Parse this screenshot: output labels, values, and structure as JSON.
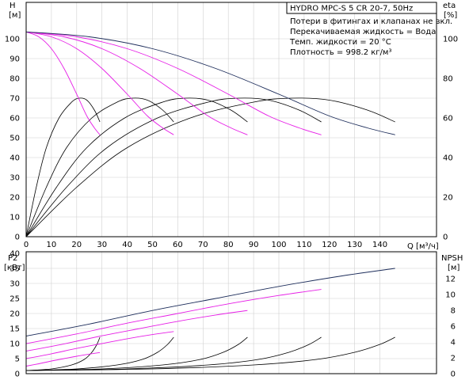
{
  "chart_data": [
    {
      "type": "line",
      "panel": "upper",
      "title": "HYDRO MPC-S 5 CR 20-7, 50Hz",
      "notes": [
        "Потери в фитингах и клапанах не вкл.",
        "Перекачиваемая жидкость = Вода",
        "Темп. жидкости = 20 °C",
        "Плотность = 998.2 кг/м³"
      ],
      "xlabel": "Q [м³/ч]",
      "x_ticks": [
        0,
        10,
        20,
        30,
        40,
        50,
        60,
        70,
        80,
        90,
        100,
        110,
        120,
        130,
        140
      ],
      "xlim": [
        0,
        150
      ],
      "ylabel_left": [
        "H",
        "[м]"
      ],
      "yleft_ticks": [
        0,
        10,
        20,
        30,
        40,
        50,
        60,
        70,
        80,
        90,
        100
      ],
      "ylim_left": [
        0,
        110
      ],
      "ylabel_right": [
        "eta",
        "[%]"
      ],
      "yright_ticks": [
        0,
        20,
        40,
        60,
        80,
        100
      ],
      "ylim_right": [
        0,
        110
      ],
      "grid": true,
      "colors": {
        "head_curves": "#e61ee6",
        "head_max": "#1c2c5a",
        "eff": "#000000"
      },
      "head_series": [
        {
          "pumps": 1,
          "color": "#e61ee6",
          "x": [
            0,
            5,
            10,
            15,
            20,
            24,
            27,
            29.2
          ],
          "y": [
            103.5,
            101,
            95,
            85,
            72,
            61,
            55,
            51.5
          ]
        },
        {
          "pumps": 2,
          "color": "#e61ee6",
          "x": [
            0,
            10,
            20,
            30,
            40,
            48,
            54,
            58.4
          ],
          "y": [
            103.5,
            101,
            95,
            85,
            72,
            61,
            55,
            51.5
          ]
        },
        {
          "pumps": 3,
          "color": "#e61ee6",
          "x": [
            0,
            15,
            30,
            45,
            60,
            72,
            81,
            87.6
          ],
          "y": [
            103.5,
            101,
            95,
            85,
            72,
            61,
            55,
            51.5
          ]
        },
        {
          "pumps": 4,
          "color": "#e61ee6",
          "x": [
            0,
            20,
            40,
            60,
            80,
            96,
            108,
            116.8
          ],
          "y": [
            103.5,
            101,
            95,
            85,
            72,
            61,
            55,
            51.5
          ]
        },
        {
          "pumps": 5,
          "color": "#1c2c5a",
          "x": [
            0,
            25,
            50,
            75,
            100,
            120,
            135,
            146
          ],
          "y": [
            103.5,
            101,
            95,
            85,
            72,
            61,
            55,
            51.5
          ]
        }
      ],
      "eff_series": [
        {
          "pumps": 1,
          "x": [
            0,
            4,
            8,
            13,
            18,
            21,
            24,
            27,
            29.2
          ],
          "y": [
            0,
            25,
            45,
            60,
            68,
            70,
            69,
            64,
            58
          ]
        },
        {
          "pumps": 2,
          "x": [
            0,
            8,
            16,
            26,
            36,
            42,
            48,
            54,
            58.4
          ],
          "y": [
            0,
            25,
            45,
            60,
            68,
            70,
            69,
            64,
            58
          ]
        },
        {
          "pumps": 3,
          "x": [
            0,
            12,
            24,
            39,
            54,
            63,
            72,
            81,
            87.6
          ],
          "y": [
            0,
            25,
            45,
            60,
            68,
            70,
            69,
            64,
            58
          ]
        },
        {
          "pumps": 4,
          "x": [
            0,
            16,
            32,
            52,
            72,
            84,
            96,
            108,
            116.8
          ],
          "y": [
            0,
            25,
            45,
            60,
            68,
            70,
            69,
            64,
            58
          ]
        },
        {
          "pumps": 5,
          "x": [
            0,
            20,
            40,
            65,
            90,
            105,
            120,
            135,
            146
          ],
          "y": [
            0,
            25,
            45,
            60,
            68,
            70,
            69,
            64,
            58
          ]
        }
      ]
    },
    {
      "type": "line",
      "panel": "lower",
      "xlim": [
        0,
        150
      ],
      "ylabel_left": [
        "P2",
        "[кВт]"
      ],
      "yleft_ticks": [
        0,
        5,
        10,
        15,
        20,
        25,
        30,
        35,
        40
      ],
      "ylim_left": [
        0,
        40
      ],
      "ylabel_right": [
        "NPSH",
        "[м]"
      ],
      "yright_ticks": [
        0,
        2,
        4,
        6,
        8,
        10,
        12
      ],
      "ylim_right": [
        0,
        14
      ],
      "grid": true,
      "colors": {
        "p2_curves": "#e61ee6",
        "p2_max": "#1c2c5a",
        "npsh": "#000000"
      },
      "p2_series": [
        {
          "pumps": 1,
          "color": "#e61ee6",
          "x": [
            0,
            5,
            10,
            15,
            20,
            25,
            29.2
          ],
          "y": [
            2.5,
            3.3,
            4.2,
            5.0,
            5.8,
            6.5,
            7.0
          ]
        },
        {
          "pumps": 2,
          "color": "#e61ee6",
          "x": [
            0,
            10,
            20,
            30,
            40,
            50,
            58.4
          ],
          "y": [
            5.0,
            6.6,
            8.4,
            10.0,
            11.6,
            13.0,
            14.0
          ]
        },
        {
          "pumps": 3,
          "color": "#e61ee6",
          "x": [
            0,
            15,
            30,
            45,
            60,
            75,
            87.6
          ],
          "y": [
            7.5,
            9.9,
            12.6,
            15.0,
            17.4,
            19.5,
            21.0
          ]
        },
        {
          "pumps": 4,
          "color": "#e61ee6",
          "x": [
            0,
            20,
            40,
            60,
            80,
            100,
            116.8
          ],
          "y": [
            10.0,
            13.2,
            16.8,
            20.0,
            23.2,
            26.0,
            28.0
          ]
        },
        {
          "pumps": 5,
          "color": "#1c2c5a",
          "x": [
            0,
            25,
            50,
            75,
            100,
            125,
            146
          ],
          "y": [
            12.5,
            16.5,
            21.0,
            25.0,
            29.0,
            32.5,
            35.0
          ]
        }
      ],
      "npsh_series": [
        {
          "pumps": 1,
          "x": [
            0,
            10,
            18,
            23,
            26,
            28,
            29.2
          ],
          "y": [
            0.4,
            0.6,
            1.1,
            1.8,
            2.7,
            3.7,
            4.6
          ]
        },
        {
          "pumps": 2,
          "x": [
            0,
            20,
            36,
            46,
            52,
            56,
            58.4
          ],
          "y": [
            0.4,
            0.6,
            1.1,
            1.8,
            2.7,
            3.7,
            4.6
          ]
        },
        {
          "pumps": 3,
          "x": [
            0,
            30,
            54,
            69,
            78,
            84,
            87.6
          ],
          "y": [
            0.4,
            0.6,
            1.1,
            1.8,
            2.7,
            3.7,
            4.6
          ]
        },
        {
          "pumps": 4,
          "x": [
            0,
            40,
            72,
            92,
            104,
            112,
            116.8
          ],
          "y": [
            0.4,
            0.6,
            1.1,
            1.8,
            2.7,
            3.7,
            4.6
          ]
        },
        {
          "pumps": 5,
          "x": [
            0,
            50,
            90,
            115,
            130,
            140,
            146
          ],
          "y": [
            0.4,
            0.6,
            1.1,
            1.8,
            2.7,
            3.7,
            4.6
          ]
        }
      ]
    }
  ]
}
